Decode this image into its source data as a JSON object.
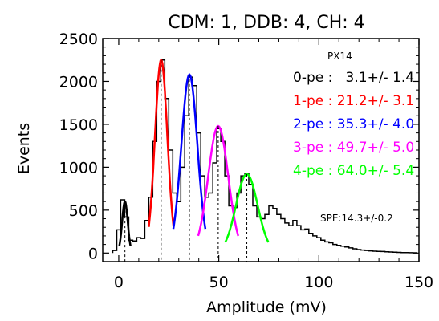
{
  "chart_data": {
    "type": "line",
    "title": "CDM: 1, DDB: 4, CH: 4",
    "xlabel": "Amplitude (mV)",
    "ylabel": "Events",
    "xlim": [
      -8,
      150
    ],
    "ylim": [
      -100,
      2500
    ],
    "xticks": [
      0,
      50,
      100,
      150
    ],
    "yticks": [
      0,
      500,
      1000,
      1500,
      2000,
      2500
    ],
    "histogram": {
      "name": "",
      "color": "#000000",
      "bin_width": 2,
      "x": [
        -2,
        0,
        2,
        4,
        6,
        8,
        10,
        12,
        14,
        16,
        18,
        20,
        22,
        24,
        26,
        28,
        30,
        32,
        34,
        36,
        38,
        40,
        42,
        44,
        46,
        48,
        50,
        52,
        54,
        56,
        58,
        60,
        62,
        64,
        66,
        68,
        70,
        72,
        74,
        76,
        78,
        80,
        82,
        84,
        86,
        88,
        90,
        92,
        94,
        96,
        98,
        100,
        102,
        104,
        106,
        108,
        110,
        112,
        114,
        116,
        118,
        120,
        122,
        124,
        126,
        128,
        130,
        132,
        134,
        136,
        138,
        140,
        142,
        144,
        146,
        148
      ],
      "y": [
        30,
        270,
        620,
        420,
        150,
        140,
        180,
        170,
        380,
        650,
        1300,
        2000,
        2250,
        1800,
        1200,
        700,
        600,
        1000,
        1600,
        2050,
        1950,
        1400,
        900,
        650,
        700,
        1050,
        1450,
        1300,
        900,
        550,
        530,
        700,
        900,
        930,
        800,
        550,
        420,
        400,
        450,
        550,
        520,
        450,
        400,
        350,
        320,
        380,
        320,
        270,
        280,
        230,
        200,
        180,
        150,
        130,
        120,
        100,
        90,
        80,
        70,
        60,
        50,
        40,
        35,
        30,
        25,
        22,
        20,
        18,
        15,
        12,
        10,
        8,
        6,
        5,
        4,
        3
      ]
    },
    "fits": [
      {
        "label": "0-pe",
        "color": "#000000",
        "mean": 3.1,
        "sigma": 1.4,
        "amplitude": 600
      },
      {
        "label": "1-pe",
        "color": "#ff0000",
        "mean": 21.2,
        "sigma": 3.1,
        "amplitude": 2250
      },
      {
        "label": "2-pe",
        "color": "#0000ff",
        "mean": 35.3,
        "sigma": 4.0,
        "amplitude": 2080
      },
      {
        "label": "3-pe",
        "color": "#ff00ff",
        "mean": 49.7,
        "sigma": 5.0,
        "amplitude": 1480
      },
      {
        "label": "4-pe",
        "color": "#00ff00",
        "mean": 64.0,
        "sigma": 5.4,
        "amplitude": 920
      }
    ],
    "annotations": {
      "pixel_id": "PX14",
      "spe": "SPE:14.3+/-0.2",
      "lines": [
        {
          "text": "0-pe :   3.1+/- 1.4",
          "color": "#000000"
        },
        {
          "text": "1-pe : 21.2+/- 3.1",
          "color": "#ff0000"
        },
        {
          "text": "2-pe : 35.3+/- 4.0",
          "color": "#0000ff"
        },
        {
          "text": "3-pe : 49.7+/- 5.0",
          "color": "#ff00ff"
        },
        {
          "text": "4-pe : 64.0+/- 5.4",
          "color": "#00ff00"
        }
      ]
    },
    "grid": false,
    "legend": "none"
  }
}
